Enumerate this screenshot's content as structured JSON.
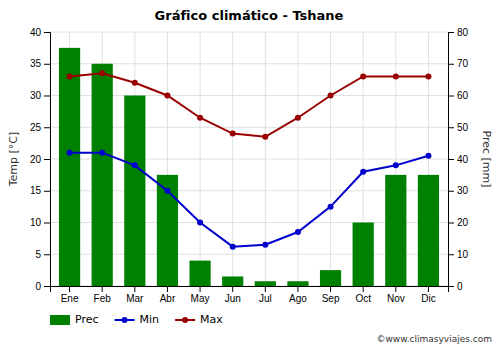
{
  "chart_data": {
    "type": "combo",
    "title": "Gráfico climático - Tshane",
    "categories": [
      "Ene",
      "Feb",
      "Mar",
      "Abr",
      "May",
      "Jun",
      "Jul",
      "Ago",
      "Sep",
      "Oct",
      "Nov",
      "Dic"
    ],
    "series": [
      {
        "name": "Prec",
        "type": "bar",
        "axis": "y2",
        "color": "#008000",
        "values": [
          75,
          70,
          60,
          35,
          8,
          3,
          1.5,
          1.5,
          5,
          20,
          35,
          35
        ]
      },
      {
        "name": "Min",
        "type": "line",
        "marker": "circle",
        "color": "#0000CC",
        "values": [
          21.0,
          21.0,
          19.0,
          15.0,
          10.0,
          6.2,
          6.5,
          8.5,
          12.5,
          18.0,
          19.0,
          20.5
        ]
      },
      {
        "name": "Max",
        "type": "line",
        "marker": "circle",
        "color": "#990000",
        "values": [
          33.0,
          33.5,
          32.0,
          30.0,
          26.5,
          24.0,
          23.5,
          26.5,
          30.0,
          33.0,
          33.0,
          33.0
        ]
      }
    ],
    "ylabel": "Temp [°C]",
    "y2label": "Prec [mm]",
    "ylim": [
      0,
      40
    ],
    "yticks": [
      0,
      5,
      10,
      15,
      20,
      25,
      30,
      35,
      40
    ],
    "y2lim": [
      0,
      80
    ],
    "y2ticks": [
      0,
      10,
      20,
      30,
      40,
      50,
      60,
      70,
      80
    ],
    "grid": true,
    "legend": "bottom",
    "annotations": [
      "©www.climasyviajes.com"
    ]
  }
}
